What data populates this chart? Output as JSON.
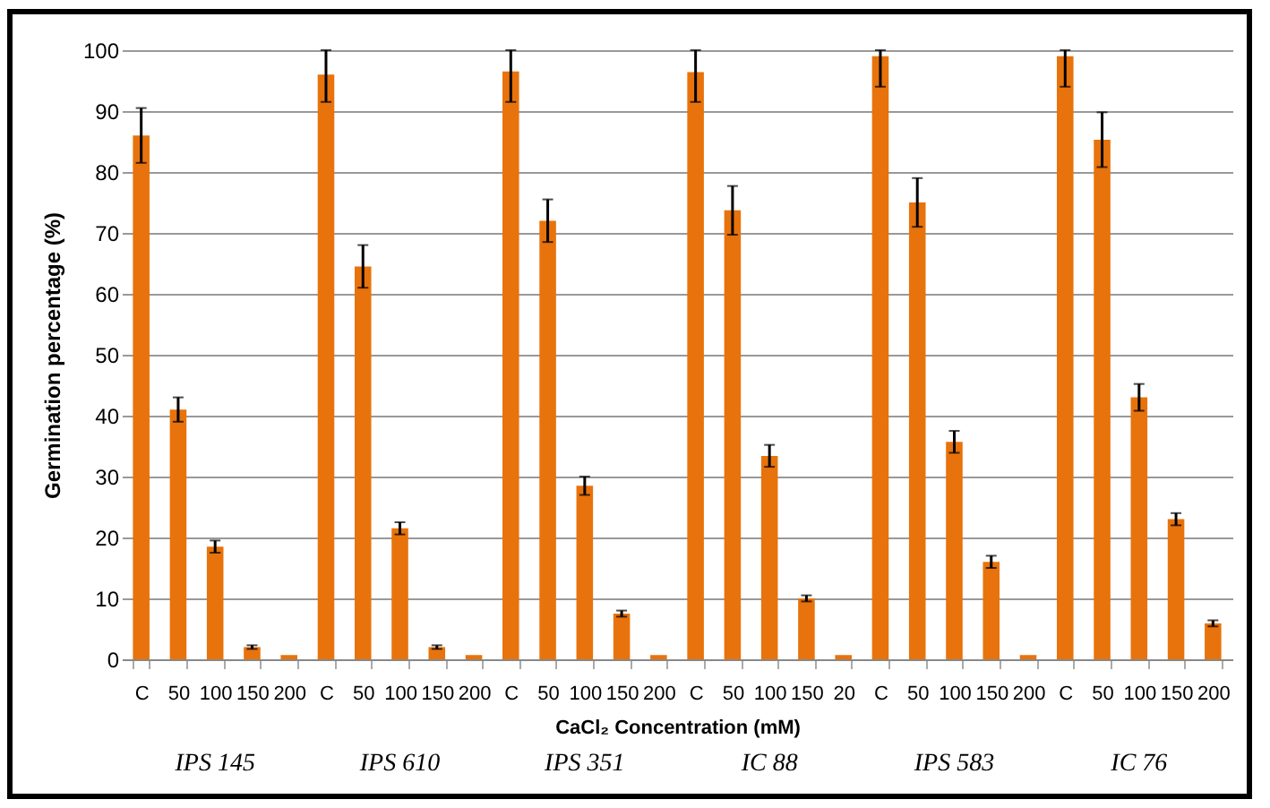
{
  "chart_data": {
    "type": "bar",
    "ylabel": "Germination percentage (%)",
    "xlabel": "CaCl₂ Concentration (mM)",
    "categories": [
      "C",
      "50",
      "100",
      "150",
      "200",
      "C",
      "50",
      "100",
      "150",
      "200",
      "C",
      "50",
      "100",
      "150",
      "200",
      "C",
      "50",
      "100",
      "150",
      "20",
      "C",
      "50",
      "100",
      "150",
      "200",
      "C",
      "50",
      "100",
      "150",
      "200"
    ],
    "values": [
      86,
      41,
      18.5,
      2,
      0.7,
      96,
      64.5,
      21.5,
      2,
      0.7,
      96.5,
      72,
      28.5,
      7.5,
      0.7,
      96.4,
      73.7,
      33.4,
      10,
      0.7,
      99,
      75,
      35.7,
      16,
      0.7,
      99,
      85.3,
      43,
      23,
      5.9
    ],
    "errors": [
      4.5,
      2,
      1,
      0.3,
      null,
      [
        91.5,
        100
      ],
      3.5,
      1,
      0.3,
      null,
      [
        91.5,
        100
      ],
      3.5,
      1.5,
      0.5,
      null,
      [
        91.5,
        100
      ],
      4,
      1.8,
      0.5,
      null,
      [
        94,
        100
      ],
      4,
      1.8,
      1,
      null,
      [
        94,
        100
      ],
      4.5,
      2.2,
      1,
      0.5
    ],
    "color": "#e8730c",
    "ylim": [
      0,
      100
    ],
    "yticks": [
      0,
      10,
      20,
      30,
      40,
      50,
      60,
      70,
      80,
      90,
      100
    ],
    "grid": "y",
    "annotations": [
      "IPS 145",
      "IPS  610",
      "IPS 351",
      "IC 88",
      "IPS 583",
      "IC 76"
    ]
  }
}
